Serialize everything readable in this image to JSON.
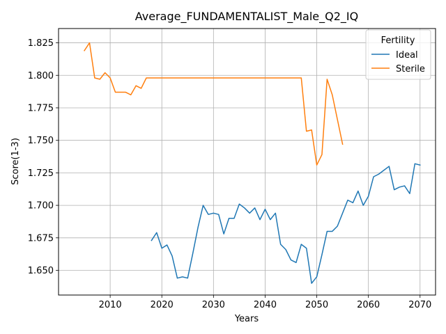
{
  "chart_data": {
    "type": "line",
    "title": "Average_FUNDAMENTALIST_Male_Q2_IQ",
    "xlabel": "Years",
    "ylabel": "Score(1-3)",
    "xlim": [
      2000,
      2073
    ],
    "ylim": [
      1.631,
      1.836
    ],
    "xticks": [
      2010,
      2020,
      2030,
      2040,
      2050,
      2060,
      2070
    ],
    "yticks": [
      1.65,
      1.675,
      1.7,
      1.725,
      1.75,
      1.775,
      1.8,
      1.825
    ],
    "xtick_labels": [
      "2010",
      "2020",
      "2030",
      "2040",
      "2050",
      "2060",
      "2070"
    ],
    "ytick_labels": [
      "1.650",
      "1.675",
      "1.700",
      "1.725",
      "1.750",
      "1.775",
      "1.800",
      "1.825"
    ],
    "grid": true,
    "legend": {
      "title": "Fertility",
      "position": "top-right"
    },
    "series": [
      {
        "name": "Ideal",
        "color": "#1f77b4",
        "x": [
          2018,
          2019,
          2020,
          2021,
          2022,
          2023,
          2024,
          2025,
          2026,
          2027,
          2028,
          2029,
          2030,
          2031,
          2032,
          2033,
          2034,
          2035,
          2036,
          2037,
          2038,
          2039,
          2040,
          2041,
          2042,
          2043,
          2044,
          2045,
          2046,
          2047,
          2048,
          2049,
          2050,
          2051,
          2052,
          2053,
          2054,
          2055,
          2056,
          2057,
          2058,
          2059,
          2060,
          2061,
          2062,
          2063,
          2064,
          2065,
          2066,
          2067,
          2068,
          2069,
          2070
        ],
        "y": [
          1.673,
          1.679,
          1.667,
          1.6695,
          1.661,
          1.644,
          1.645,
          1.644,
          1.663,
          1.683,
          1.7,
          1.693,
          1.694,
          1.693,
          1.678,
          1.69,
          1.69,
          1.701,
          1.698,
          1.694,
          1.698,
          1.689,
          1.697,
          1.689,
          1.694,
          1.67,
          1.666,
          1.658,
          1.656,
          1.67,
          1.667,
          1.64,
          1.645,
          1.662,
          1.68,
          1.68,
          1.684,
          1.694,
          1.704,
          1.702,
          1.711,
          1.7,
          1.707,
          1.722,
          1.724,
          1.727,
          1.73,
          1.712,
          1.714,
          1.715,
          1.709,
          1.732,
          1.731
        ]
      },
      {
        "name": "Sterile",
        "color": "#ff7f0e",
        "x": [
          2005,
          2006,
          2007,
          2008,
          2009,
          2010,
          2011,
          2012,
          2013,
          2014,
          2015,
          2016,
          2017,
          2018,
          2019,
          2020,
          2021,
          2022,
          2023,
          2024,
          2025,
          2026,
          2027,
          2028,
          2029,
          2030,
          2031,
          2032,
          2033,
          2034,
          2035,
          2036,
          2037,
          2038,
          2039,
          2040,
          2041,
          2042,
          2043,
          2044,
          2045,
          2046,
          2047,
          2048,
          2049,
          2050,
          2051,
          2052,
          2053,
          2054,
          2055
        ],
        "y": [
          1.819,
          1.825,
          1.798,
          1.797,
          1.802,
          1.798,
          1.787,
          1.787,
          1.787,
          1.785,
          1.792,
          1.79,
          1.798,
          1.798,
          1.798,
          1.798,
          1.798,
          1.798,
          1.798,
          1.798,
          1.798,
          1.798,
          1.798,
          1.798,
          1.798,
          1.798,
          1.798,
          1.798,
          1.798,
          1.798,
          1.798,
          1.798,
          1.798,
          1.798,
          1.798,
          1.798,
          1.798,
          1.798,
          1.798,
          1.798,
          1.798,
          1.798,
          1.798,
          1.757,
          1.758,
          1.731,
          1.739,
          1.797,
          1.785,
          1.766,
          1.747
        ]
      }
    ]
  }
}
